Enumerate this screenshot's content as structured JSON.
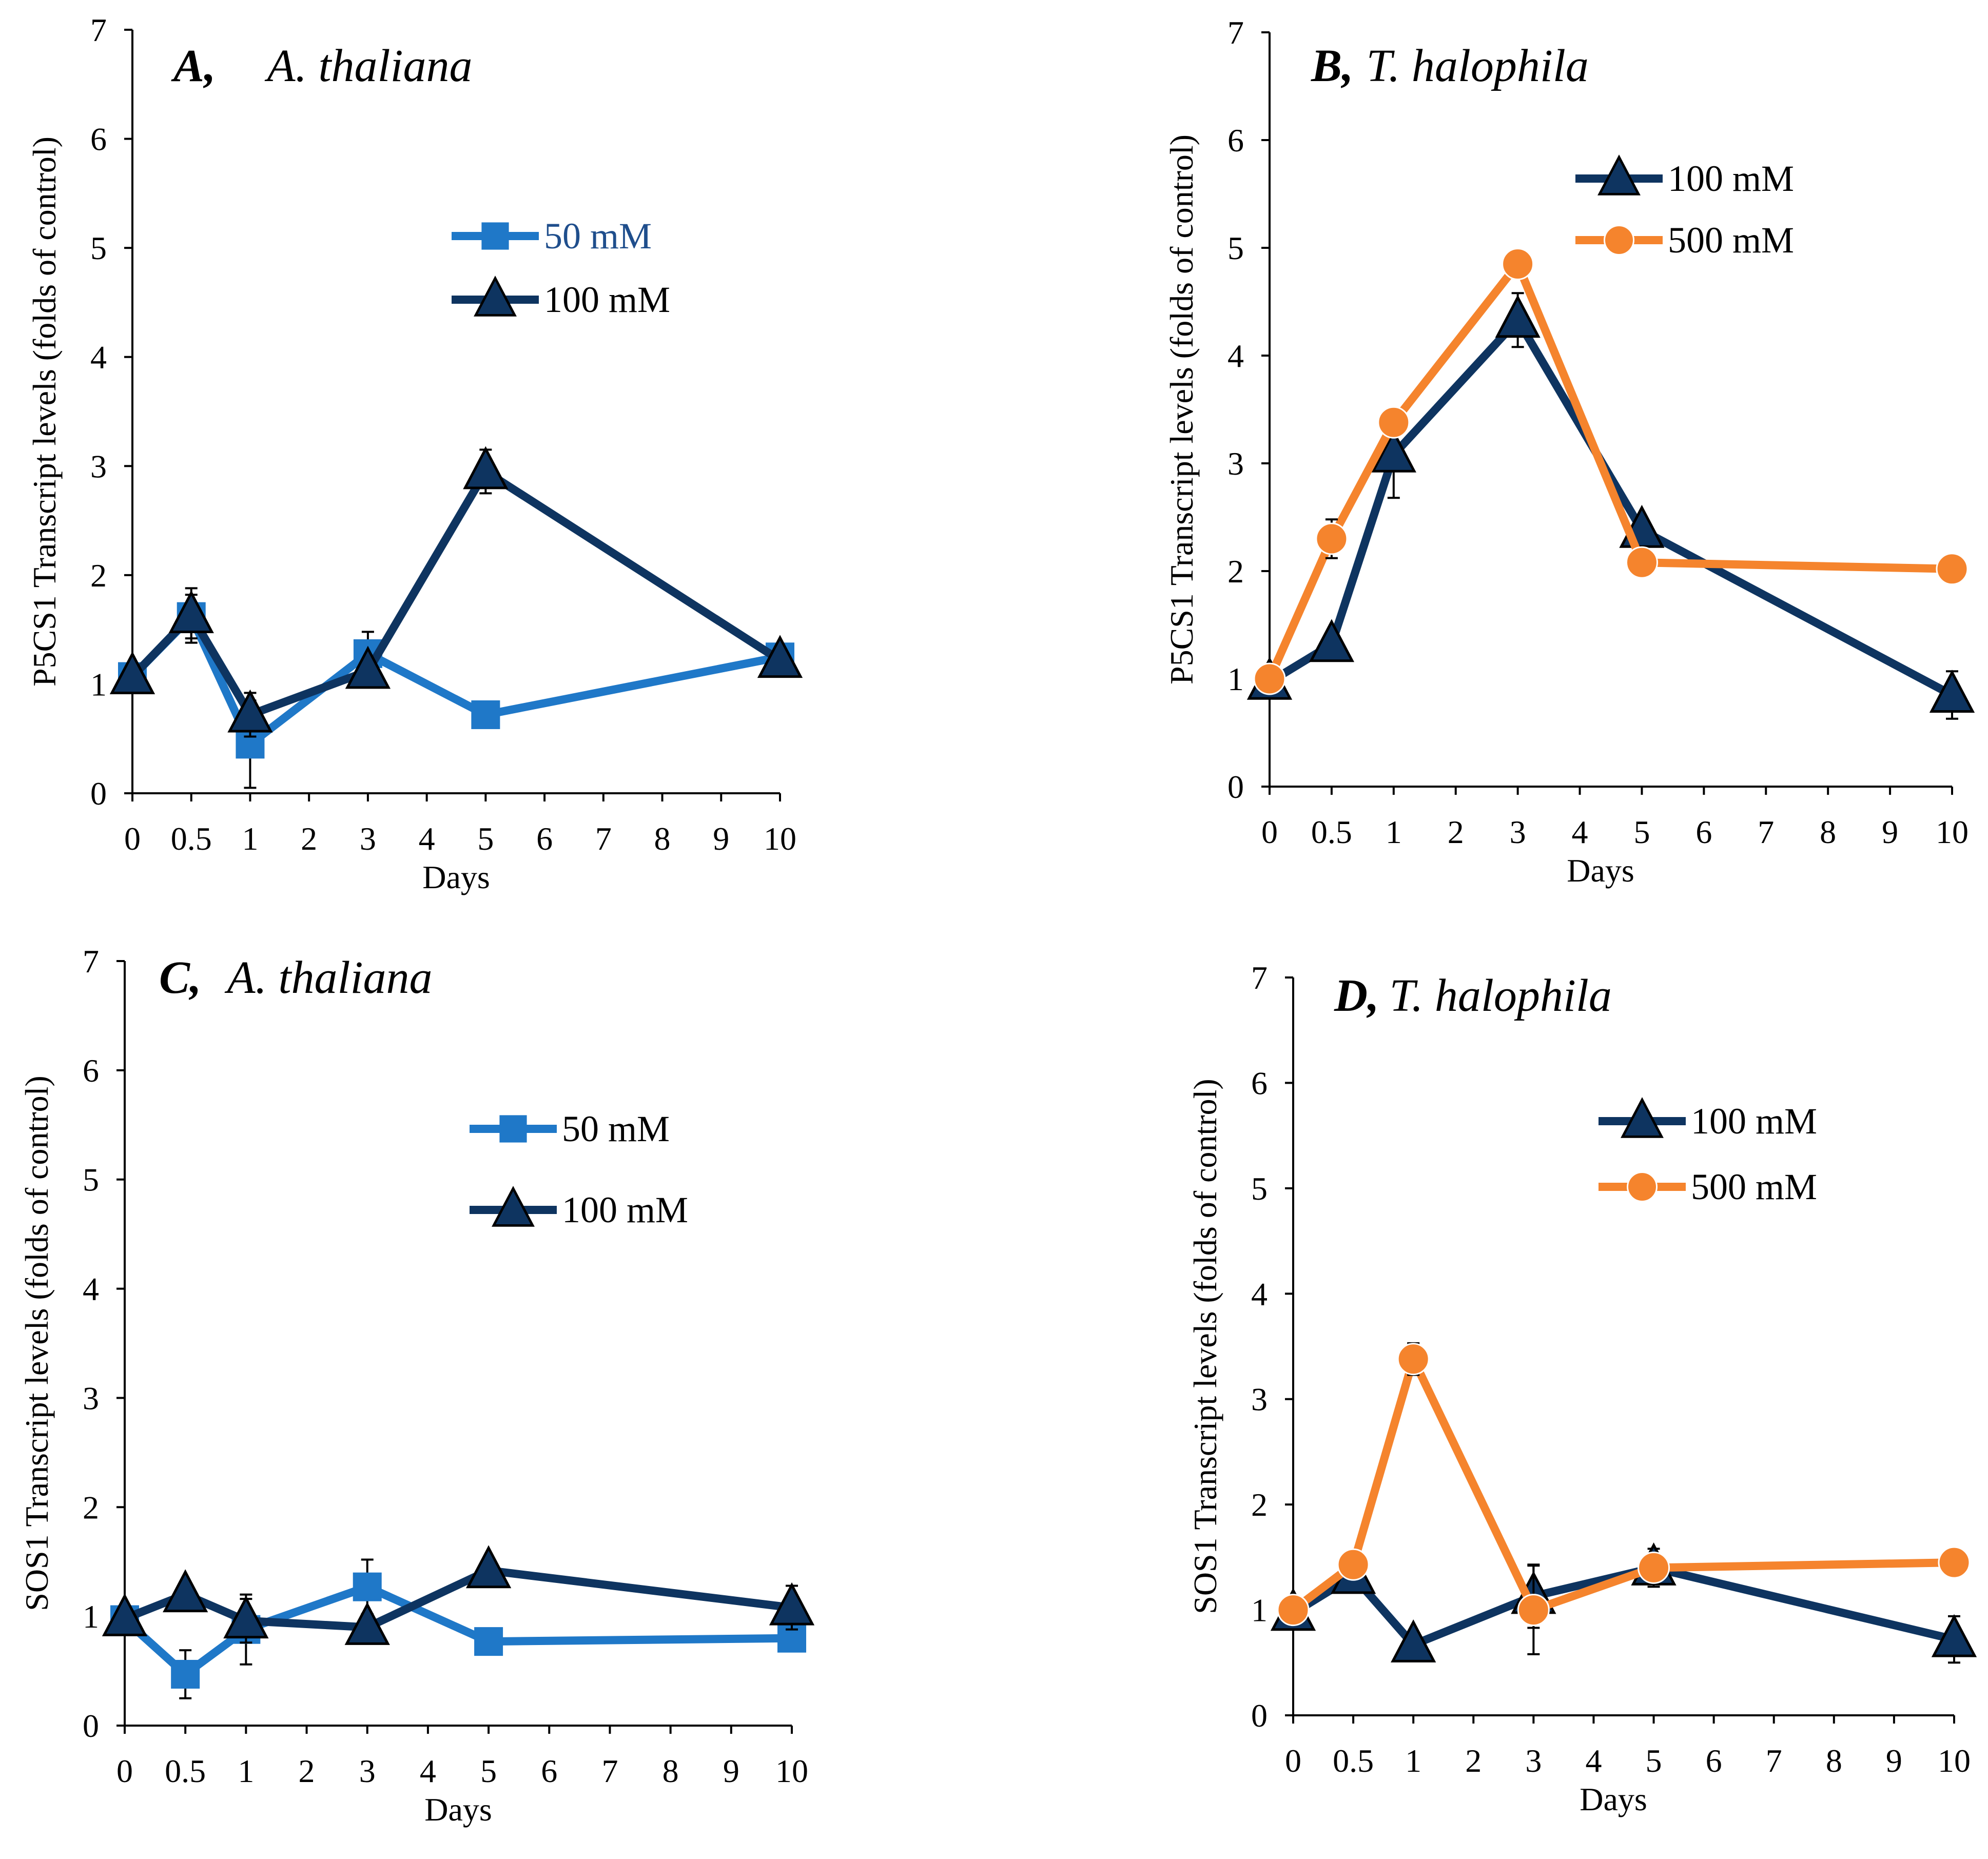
{
  "figure": {
    "colors": {
      "light_blue": "#1f78c8",
      "dark_navy": "#0e3460",
      "orange": "#f5842d",
      "axis": "#000000"
    }
  },
  "chart_data": [
    {
      "type": "line",
      "panel": "A",
      "title": {
        "letter": "A,",
        "species": "A. thaliana"
      },
      "xlabel": "Days",
      "ylabel": "P5CS1 Transcript levels (folds of control)",
      "xlim": [
        0,
        11
      ],
      "ylim": [
        0,
        7
      ],
      "yticks": [
        0,
        1,
        2,
        3,
        4,
        5,
        6,
        7
      ],
      "xticks": [
        {
          "label": "0",
          "pos": 0
        },
        {
          "label": "0.5",
          "pos": 1
        },
        {
          "label": "1",
          "pos": 2
        },
        {
          "label": "2",
          "pos": 3
        },
        {
          "label": "3",
          "pos": 4
        },
        {
          "label": "4",
          "pos": 5
        },
        {
          "label": "5",
          "pos": 6
        },
        {
          "label": "6",
          "pos": 7
        },
        {
          "label": "7",
          "pos": 8
        },
        {
          "label": "8",
          "pos": 9
        },
        {
          "label": "9",
          "pos": 10
        },
        {
          "label": "10",
          "pos": 11
        }
      ],
      "legend": "middle-right",
      "series": [
        {
          "name": "50 mM",
          "marker": "square",
          "color": "#1f78c8",
          "label_color": "#1f4e8c",
          "points": [
            {
              "day": "0",
              "x": 0,
              "y": 1.07,
              "err": 0.05
            },
            {
              "day": "0.5",
              "x": 1,
              "y": 1.62,
              "err": 0.2
            },
            {
              "day": "1",
              "x": 2,
              "y": 0.45,
              "err": 0.4
            },
            {
              "day": "3",
              "x": 4,
              "y": 1.28,
              "err": 0.2
            },
            {
              "day": "5",
              "x": 6,
              "y": 0.72,
              "err": 0.05
            },
            {
              "day": "10",
              "x": 11,
              "y": 1.25,
              "err": 0.05
            }
          ]
        },
        {
          "name": "100 mM",
          "marker": "triangle",
          "color": "#0e3460",
          "label_color": "#000000",
          "points": [
            {
              "day": "0",
              "x": 0,
              "y": 1.07,
              "err": 0.05
            },
            {
              "day": "0.5",
              "x": 1,
              "y": 1.63,
              "err": 0.25
            },
            {
              "day": "1",
              "x": 2,
              "y": 0.72,
              "err": 0.2
            },
            {
              "day": "3",
              "x": 4,
              "y": 1.12,
              "err": 0.1
            },
            {
              "day": "5",
              "x": 6,
              "y": 2.95,
              "err": 0.2
            },
            {
              "day": "10",
              "x": 11,
              "y": 1.22,
              "err": 0.05
            }
          ]
        }
      ]
    },
    {
      "type": "line",
      "panel": "B",
      "title": {
        "letter": "B,",
        "species": "T. halophila"
      },
      "xlabel": "Days",
      "ylabel": "P5CS1 Transcript levels (folds of control)",
      "xlim": [
        0,
        11
      ],
      "ylim": [
        0,
        7
      ],
      "yticks": [
        0,
        1,
        2,
        3,
        4,
        5,
        6,
        7
      ],
      "xticks": [
        {
          "label": "0",
          "pos": 0
        },
        {
          "label": "0.5",
          "pos": 1
        },
        {
          "label": "1",
          "pos": 2
        },
        {
          "label": "2",
          "pos": 3
        },
        {
          "label": "3",
          "pos": 4
        },
        {
          "label": "4",
          "pos": 5
        },
        {
          "label": "5",
          "pos": 6
        },
        {
          "label": "6",
          "pos": 7
        },
        {
          "label": "7",
          "pos": 8
        },
        {
          "label": "8",
          "pos": 9
        },
        {
          "label": "9",
          "pos": 10
        },
        {
          "label": "10",
          "pos": 11
        }
      ],
      "legend": "top-right",
      "series": [
        {
          "name": "100 mM",
          "marker": "triangle",
          "color": "#0e3460",
          "label_color": "#000000",
          "points": [
            {
              "day": "0",
              "x": 0,
              "y": 0.97,
              "err": 0.05
            },
            {
              "day": "0.5",
              "x": 1,
              "y": 1.32,
              "err": 0.05
            },
            {
              "day": "1",
              "x": 2,
              "y": 3.08,
              "err": 0.4
            },
            {
              "day": "3",
              "x": 4,
              "y": 4.33,
              "err": 0.25
            },
            {
              "day": "5",
              "x": 6,
              "y": 2.38,
              "err": 0.1
            },
            {
              "day": "10",
              "x": 11,
              "y": 0.85,
              "err": 0.22
            }
          ]
        },
        {
          "name": "500 mM",
          "marker": "circle",
          "color": "#f5842d",
          "label_color": "#000000",
          "points": [
            {
              "day": "0",
              "x": 0,
              "y": 1.0,
              "err": 0.05
            },
            {
              "day": "0.5",
              "x": 1,
              "y": 2.3,
              "err": 0.18
            },
            {
              "day": "1",
              "x": 2,
              "y": 3.38,
              "err": 0.12
            },
            {
              "day": "3",
              "x": 4,
              "y": 4.85,
              "err": 0.05
            },
            {
              "day": "5",
              "x": 6,
              "y": 2.08,
              "err": 0.05
            },
            {
              "day": "10",
              "x": 11,
              "y": 2.02,
              "err": 0.05
            }
          ]
        }
      ]
    },
    {
      "type": "line",
      "panel": "C",
      "title": {
        "letter": "C,",
        "species": "A. thaliana"
      },
      "xlabel": "Days",
      "ylabel": "SOS1 Transcript levels (folds of control)",
      "xlim": [
        0,
        11
      ],
      "ylim": [
        0,
        7
      ],
      "yticks": [
        0,
        1,
        2,
        3,
        4,
        5,
        6,
        7
      ],
      "xticks": [
        {
          "label": "0",
          "pos": 0
        },
        {
          "label": "0.5",
          "pos": 1
        },
        {
          "label": "1",
          "pos": 2
        },
        {
          "label": "2",
          "pos": 3
        },
        {
          "label": "3",
          "pos": 4
        },
        {
          "label": "4",
          "pos": 5
        },
        {
          "label": "5",
          "pos": 6
        },
        {
          "label": "6",
          "pos": 7
        },
        {
          "label": "7",
          "pos": 8
        },
        {
          "label": "8",
          "pos": 9
        },
        {
          "label": "9",
          "pos": 10
        },
        {
          "label": "10",
          "pos": 11
        }
      ],
      "legend": "middle-right",
      "series": [
        {
          "name": "50 mM",
          "marker": "square",
          "color": "#1f78c8",
          "label_color": "#000000",
          "points": [
            {
              "day": "0",
              "x": 0,
              "y": 0.97,
              "err": 0.05
            },
            {
              "day": "0.5",
              "x": 1,
              "y": 0.47,
              "err": 0.22
            },
            {
              "day": "1",
              "x": 2,
              "y": 0.88,
              "err": 0.32
            },
            {
              "day": "3",
              "x": 4,
              "y": 1.27,
              "err": 0.25
            },
            {
              "day": "5",
              "x": 6,
              "y": 0.77,
              "err": 0.05
            },
            {
              "day": "10",
              "x": 11,
              "y": 0.8,
              "err": 0.05
            }
          ]
        },
        {
          "name": "100 mM",
          "marker": "triangle",
          "color": "#0e3460",
          "label_color": "#000000",
          "points": [
            {
              "day": "0",
              "x": 0,
              "y": 0.98,
              "err": 0.05
            },
            {
              "day": "0.5",
              "x": 1,
              "y": 1.2,
              "err": 0.05
            },
            {
              "day": "1",
              "x": 2,
              "y": 0.96,
              "err": 0.2
            },
            {
              "day": "3",
              "x": 4,
              "y": 0.9,
              "err": 0.12
            },
            {
              "day": "5",
              "x": 6,
              "y": 1.42,
              "err": 0.05
            },
            {
              "day": "10",
              "x": 11,
              "y": 1.08,
              "err": 0.2
            }
          ]
        }
      ]
    },
    {
      "type": "line",
      "panel": "D",
      "title": {
        "letter": "D,",
        "species": "T. halophila"
      },
      "xlabel": "Days",
      "ylabel": "SOS1 Transcript levels (folds of control)",
      "xlim": [
        0,
        11
      ],
      "ylim": [
        0,
        7
      ],
      "yticks": [
        0,
        1,
        2,
        3,
        4,
        5,
        6,
        7
      ],
      "xticks": [
        {
          "label": "0",
          "pos": 0
        },
        {
          "label": "0.5",
          "pos": 1
        },
        {
          "label": "1",
          "pos": 2
        },
        {
          "label": "2",
          "pos": 3
        },
        {
          "label": "3",
          "pos": 4
        },
        {
          "label": "4",
          "pos": 5
        },
        {
          "label": "5",
          "pos": 6
        },
        {
          "label": "6",
          "pos": 7
        },
        {
          "label": "7",
          "pos": 8
        },
        {
          "label": "8",
          "pos": 9
        },
        {
          "label": "9",
          "pos": 10
        },
        {
          "label": "10",
          "pos": 11
        }
      ],
      "legend": "top-right",
      "series": [
        {
          "name": "100 mM",
          "marker": "triangle",
          "color": "#0e3460",
          "label_color": "#000000",
          "points": [
            {
              "day": "0",
              "x": 0,
              "y": 0.97,
              "err": 0.05
            },
            {
              "day": "0.5",
              "x": 1,
              "y": 1.32,
              "err": 0.05
            },
            {
              "day": "1",
              "x": 2,
              "y": 0.67,
              "err": 0.05
            },
            {
              "day": "3",
              "x": 4,
              "y": 1.13,
              "err": 0.3
            },
            {
              "day": "5",
              "x": 6,
              "y": 1.4,
              "err": 0.18
            },
            {
              "day": "10",
              "x": 11,
              "y": 0.72,
              "err": 0.22
            }
          ]
        },
        {
          "name": "500 mM",
          "marker": "circle",
          "color": "#f5842d",
          "label_color": "#000000",
          "points": [
            {
              "day": "0",
              "x": 0,
              "y": 1.0,
              "err": 0.05
            },
            {
              "day": "0.5",
              "x": 1,
              "y": 1.43,
              "err": 0.05
            },
            {
              "day": "1",
              "x": 2,
              "y": 3.38,
              "err": 0.15
            },
            {
              "day": "3",
              "x": 4,
              "y": 1.0,
              "err": 0.42
            },
            {
              "day": "5",
              "x": 6,
              "y": 1.4,
              "err": 0.05
            },
            {
              "day": "10",
              "x": 11,
              "y": 1.45,
              "err": 0.05
            }
          ]
        }
      ]
    }
  ]
}
